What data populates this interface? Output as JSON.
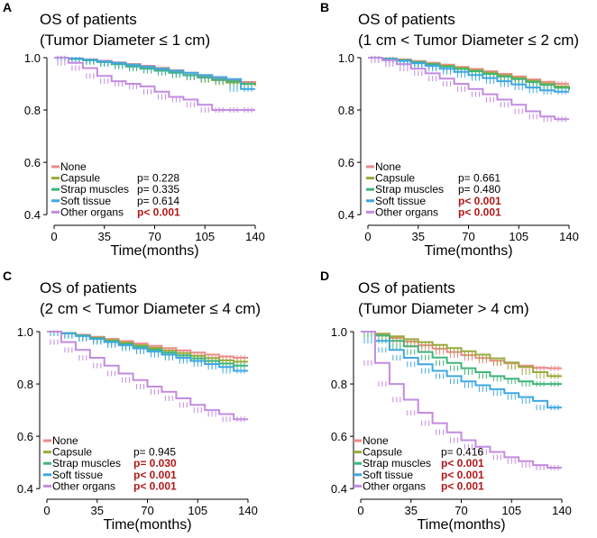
{
  "colors": {
    "None": "#ee8a8a",
    "Capsule": "#9aaa3c",
    "Strap muscles": "#3fb57a",
    "Soft tissue": "#3fa7e2",
    "Other organs": "#c38be0",
    "significant": "#b01818"
  },
  "chart_data": [
    {
      "type": "line",
      "panel": "A",
      "title": "OS of patients",
      "subtitle": "(Tumor Diameter ≤ 1 cm)",
      "xlabel": "Time(months)",
      "ylabel": "",
      "xticks": [
        "0",
        "35",
        "70",
        "105",
        "140"
      ],
      "yticks": [
        "0.4",
        "0.6",
        "0.8",
        "1.0"
      ],
      "xlim": [
        0,
        140
      ],
      "ylim": [
        0.38,
        1.0
      ],
      "legend_position": "bottom-left",
      "series": [
        {
          "name": "None",
          "pvalue": "",
          "significant": false,
          "x": [
            0,
            10,
            20,
            30,
            40,
            50,
            60,
            70,
            80,
            90,
            100,
            110,
            120,
            130,
            140
          ],
          "y": [
            1.0,
            0.997,
            0.993,
            0.988,
            0.982,
            0.976,
            0.969,
            0.961,
            0.952,
            0.942,
            0.931,
            0.92,
            0.913,
            0.907,
            0.9
          ]
        },
        {
          "name": "Capsule",
          "pvalue": "p= 0.228",
          "significant": false,
          "x": [
            0,
            10,
            20,
            30,
            40,
            50,
            60,
            70,
            80,
            90,
            100,
            110,
            120,
            130,
            140
          ],
          "y": [
            1.0,
            0.996,
            0.991,
            0.985,
            0.978,
            0.971,
            0.963,
            0.954,
            0.944,
            0.934,
            0.924,
            0.914,
            0.905,
            0.899,
            0.893
          ]
        },
        {
          "name": "Strap muscles",
          "pvalue": "p= 0.335",
          "significant": false,
          "x": [
            0,
            10,
            20,
            30,
            40,
            50,
            60,
            70,
            80,
            90,
            100,
            110,
            120,
            130,
            140
          ],
          "y": [
            1.0,
            0.996,
            0.99,
            0.983,
            0.975,
            0.966,
            0.958,
            0.95,
            0.942,
            0.933,
            0.925,
            0.917,
            0.91,
            0.9,
            0.9
          ]
        },
        {
          "name": "Soft tissue",
          "pvalue": "p= 0.614",
          "significant": false,
          "x": [
            0,
            10,
            20,
            30,
            40,
            50,
            60,
            70,
            80,
            90,
            100,
            110,
            120,
            130,
            140
          ],
          "y": [
            1.0,
            0.997,
            0.992,
            0.986,
            0.98,
            0.973,
            0.966,
            0.958,
            0.95,
            0.942,
            0.934,
            0.926,
            0.918,
            0.88,
            0.88
          ]
        },
        {
          "name": "Other organs",
          "pvalue": "p< 0.001",
          "significant": true,
          "x": [
            0,
            10,
            20,
            30,
            40,
            50,
            60,
            70,
            80,
            90,
            100,
            110,
            120,
            130,
            140
          ],
          "y": [
            1.0,
            0.98,
            0.96,
            0.93,
            0.91,
            0.9,
            0.89,
            0.87,
            0.85,
            0.84,
            0.82,
            0.8,
            0.8,
            0.8,
            0.8
          ]
        }
      ]
    },
    {
      "type": "line",
      "panel": "B",
      "title": "OS of patients",
      "subtitle": "(1 cm < Tumor Diameter ≤ 2 cm)",
      "xlabel": "Time(months)",
      "ylabel": "",
      "xticks": [
        "0",
        "35",
        "70",
        "105",
        "140"
      ],
      "yticks": [
        "0.4",
        "0.6",
        "0.8",
        "1.0"
      ],
      "xlim": [
        0,
        140
      ],
      "ylim": [
        0.38,
        1.0
      ],
      "legend_position": "bottom-left",
      "series": [
        {
          "name": "None",
          "pvalue": "",
          "significant": false,
          "x": [
            0,
            10,
            20,
            30,
            40,
            50,
            60,
            70,
            80,
            90,
            100,
            110,
            120,
            130,
            140
          ],
          "y": [
            1.0,
            0.997,
            0.993,
            0.987,
            0.98,
            0.973,
            0.965,
            0.957,
            0.948,
            0.938,
            0.928,
            0.917,
            0.908,
            0.9,
            0.9
          ]
        },
        {
          "name": "Capsule",
          "pvalue": "p= 0.661",
          "significant": false,
          "x": [
            0,
            10,
            20,
            30,
            40,
            50,
            60,
            70,
            80,
            90,
            100,
            110,
            120,
            130,
            140
          ],
          "y": [
            1.0,
            0.996,
            0.991,
            0.984,
            0.977,
            0.969,
            0.961,
            0.952,
            0.943,
            0.933,
            0.923,
            0.912,
            0.901,
            0.89,
            0.88
          ]
        },
        {
          "name": "Strap muscles",
          "pvalue": "p= 0.480",
          "significant": false,
          "x": [
            0,
            10,
            20,
            30,
            40,
            50,
            60,
            70,
            80,
            90,
            100,
            110,
            120,
            130,
            140
          ],
          "y": [
            1.0,
            0.996,
            0.99,
            0.983,
            0.975,
            0.966,
            0.957,
            0.948,
            0.938,
            0.928,
            0.918,
            0.907,
            0.896,
            0.885,
            0.875
          ]
        },
        {
          "name": "Soft tissue",
          "pvalue": "p< 0.001",
          "significant": true,
          "x": [
            0,
            10,
            20,
            30,
            40,
            50,
            60,
            70,
            80,
            90,
            100,
            110,
            120,
            130,
            140
          ],
          "y": [
            1.0,
            0.995,
            0.988,
            0.979,
            0.969,
            0.958,
            0.946,
            0.934,
            0.922,
            0.91,
            0.898,
            0.886,
            0.875,
            0.87,
            0.87
          ]
        },
        {
          "name": "Other organs",
          "pvalue": "p< 0.001",
          "significant": true,
          "x": [
            0,
            10,
            20,
            30,
            40,
            50,
            60,
            70,
            80,
            90,
            100,
            110,
            120,
            130,
            140
          ],
          "y": [
            1.0,
            0.99,
            0.975,
            0.958,
            0.94,
            0.92,
            0.9,
            0.88,
            0.86,
            0.84,
            0.82,
            0.795,
            0.775,
            0.765,
            0.765
          ]
        }
      ]
    },
    {
      "type": "line",
      "panel": "C",
      "title": "OS of patients",
      "subtitle": "(2 cm < Tumor Diameter ≤ 4 cm)",
      "xlabel": "Time(months)",
      "ylabel": "",
      "xticks": [
        "0",
        "35",
        "70",
        "105",
        "140"
      ],
      "yticks": [
        "0.4",
        "0.6",
        "0.8",
        "1.0"
      ],
      "xlim": [
        0,
        140
      ],
      "ylim": [
        0.38,
        1.0
      ],
      "legend_position": "bottom-left",
      "series": [
        {
          "name": "None",
          "pvalue": "",
          "significant": false,
          "x": [
            0,
            10,
            20,
            30,
            40,
            50,
            60,
            70,
            80,
            90,
            100,
            110,
            120,
            130,
            140
          ],
          "y": [
            1.0,
            0.995,
            0.988,
            0.98,
            0.972,
            0.964,
            0.955,
            0.946,
            0.937,
            0.928,
            0.92,
            0.912,
            0.905,
            0.9,
            0.9
          ]
        },
        {
          "name": "Capsule",
          "pvalue": "p= 0.945",
          "significant": false,
          "x": [
            0,
            10,
            20,
            30,
            40,
            50,
            60,
            70,
            80,
            90,
            100,
            110,
            120,
            130,
            140
          ],
          "y": [
            1.0,
            0.994,
            0.986,
            0.977,
            0.968,
            0.958,
            0.948,
            0.938,
            0.928,
            0.918,
            0.908,
            0.899,
            0.89,
            0.885,
            0.885
          ]
        },
        {
          "name": "Strap muscles",
          "pvalue": "p= 0.030",
          "significant": true,
          "x": [
            0,
            10,
            20,
            30,
            40,
            50,
            60,
            70,
            80,
            90,
            100,
            110,
            120,
            130,
            140
          ],
          "y": [
            1.0,
            0.994,
            0.985,
            0.975,
            0.964,
            0.953,
            0.942,
            0.931,
            0.92,
            0.909,
            0.898,
            0.888,
            0.878,
            0.87,
            0.87
          ]
        },
        {
          "name": "Soft tissue",
          "pvalue": "p< 0.001",
          "significant": true,
          "x": [
            0,
            10,
            20,
            30,
            40,
            50,
            60,
            70,
            80,
            90,
            100,
            110,
            120,
            130,
            140
          ],
          "y": [
            1.0,
            0.993,
            0.983,
            0.972,
            0.96,
            0.948,
            0.936,
            0.924,
            0.912,
            0.9,
            0.888,
            0.876,
            0.865,
            0.85,
            0.85
          ]
        },
        {
          "name": "Other organs",
          "pvalue": "p< 0.001",
          "significant": true,
          "x": [
            0,
            10,
            20,
            30,
            40,
            50,
            60,
            70,
            80,
            90,
            100,
            110,
            120,
            130,
            140
          ],
          "y": [
            1.0,
            0.96,
            0.93,
            0.9,
            0.87,
            0.84,
            0.815,
            0.79,
            0.77,
            0.745,
            0.72,
            0.7,
            0.685,
            0.665,
            0.665
          ]
        }
      ]
    },
    {
      "type": "line",
      "panel": "D",
      "title": "OS of patients",
      "subtitle": "(Tumor Diameter > 4 cm)",
      "xlabel": "Time(months)",
      "ylabel": "",
      "xticks": [
        "0",
        "35",
        "70",
        "105",
        "140"
      ],
      "yticks": [
        "0.4",
        "0.6",
        "0.8",
        "1.0"
      ],
      "xlim": [
        0,
        140
      ],
      "ylim": [
        0.38,
        1.0
      ],
      "legend_position": "bottom-left",
      "series": [
        {
          "name": "None",
          "pvalue": "",
          "significant": false,
          "x": [
            0,
            10,
            20,
            30,
            40,
            50,
            60,
            70,
            80,
            90,
            100,
            110,
            120,
            130,
            140
          ],
          "y": [
            1.0,
            0.99,
            0.976,
            0.962,
            0.948,
            0.935,
            0.922,
            0.91,
            0.899,
            0.889,
            0.879,
            0.87,
            0.862,
            0.86,
            0.86
          ]
        },
        {
          "name": "Capsule",
          "pvalue": "p= 0.416",
          "significant": false,
          "x": [
            0,
            10,
            20,
            30,
            40,
            50,
            60,
            70,
            80,
            90,
            100,
            110,
            120,
            130,
            140
          ],
          "y": [
            1.0,
            0.992,
            0.982,
            0.971,
            0.96,
            0.949,
            0.937,
            0.925,
            0.912,
            0.898,
            0.882,
            0.865,
            0.845,
            0.83,
            0.83
          ]
        },
        {
          "name": "Strap muscles",
          "pvalue": "p< 0.001",
          "significant": true,
          "x": [
            0,
            10,
            20,
            30,
            40,
            50,
            60,
            70,
            80,
            90,
            100,
            110,
            120,
            130,
            140
          ],
          "y": [
            1.0,
            0.985,
            0.965,
            0.944,
            0.922,
            0.901,
            0.88,
            0.86,
            0.845,
            0.83,
            0.82,
            0.81,
            0.8,
            0.8,
            0.8
          ]
        },
        {
          "name": "Soft tissue",
          "pvalue": "p< 0.001",
          "significant": true,
          "x": [
            0,
            10,
            20,
            30,
            40,
            50,
            60,
            70,
            80,
            90,
            100,
            110,
            120,
            130,
            140
          ],
          "y": [
            1.0,
            0.965,
            0.93,
            0.9,
            0.875,
            0.85,
            0.83,
            0.81,
            0.795,
            0.78,
            0.765,
            0.75,
            0.735,
            0.71,
            0.71
          ]
        },
        {
          "name": "Other organs",
          "pvalue": "p< 0.001",
          "significant": true,
          "x": [
            0,
            10,
            20,
            30,
            40,
            50,
            60,
            70,
            80,
            90,
            100,
            110,
            120,
            130,
            140
          ],
          "y": [
            1.0,
            0.88,
            0.8,
            0.74,
            0.69,
            0.65,
            0.615,
            0.585,
            0.56,
            0.54,
            0.52,
            0.505,
            0.49,
            0.48,
            0.48
          ]
        }
      ]
    }
  ]
}
